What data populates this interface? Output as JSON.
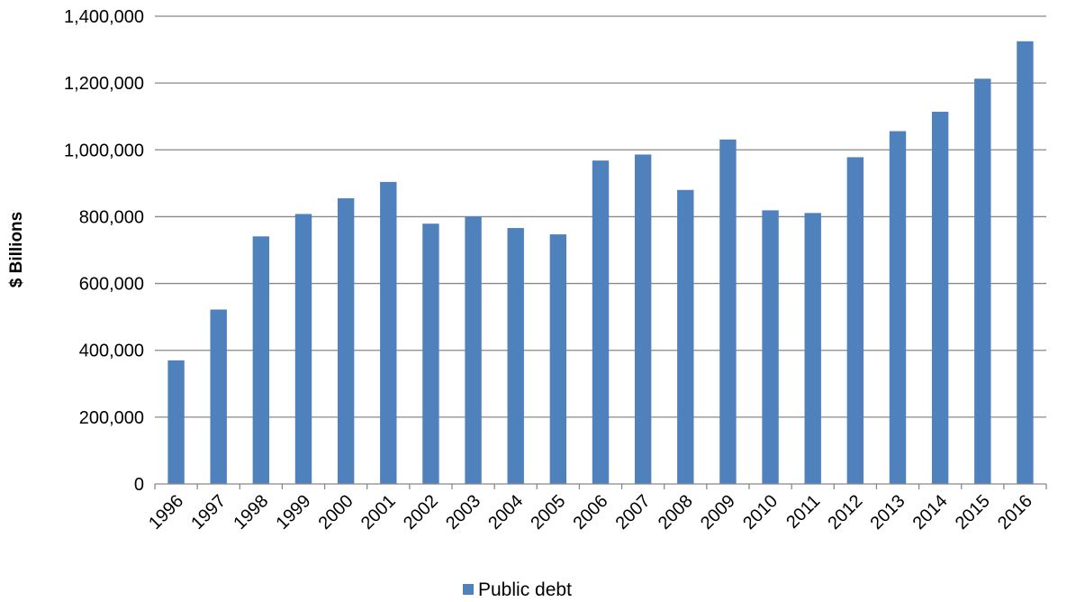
{
  "chart_data": {
    "type": "bar",
    "title": "",
    "xlabel": "",
    "ylabel": "$ Billions",
    "ylim": [
      0,
      1400000
    ],
    "yticks": [
      0,
      200000,
      400000,
      600000,
      800000,
      1000000,
      1200000,
      1400000
    ],
    "ytick_labels": [
      "0",
      "200,000",
      "400,000",
      "600,000",
      "800,000",
      "1,000,000",
      "1,200,000",
      "1,400,000"
    ],
    "categories": [
      "1996",
      "1997",
      "1998",
      "1999",
      "2000",
      "2001",
      "2002",
      "2003",
      "2004",
      "2005",
      "2006",
      "2007",
      "2008",
      "2009",
      "2010",
      "2011",
      "2012",
      "2013",
      "2014",
      "2015",
      "2016"
    ],
    "series": [
      {
        "name": "Public debt",
        "color": "#4f81bd",
        "values": [
          370000,
          522000,
          741000,
          808000,
          855000,
          904000,
          779000,
          800000,
          766000,
          747000,
          968000,
          986000,
          880000,
          1031000,
          819000,
          811000,
          978000,
          1056000,
          1114000,
          1213000,
          1325000
        ]
      }
    ],
    "grid": true,
    "legend": "bottom-center"
  }
}
